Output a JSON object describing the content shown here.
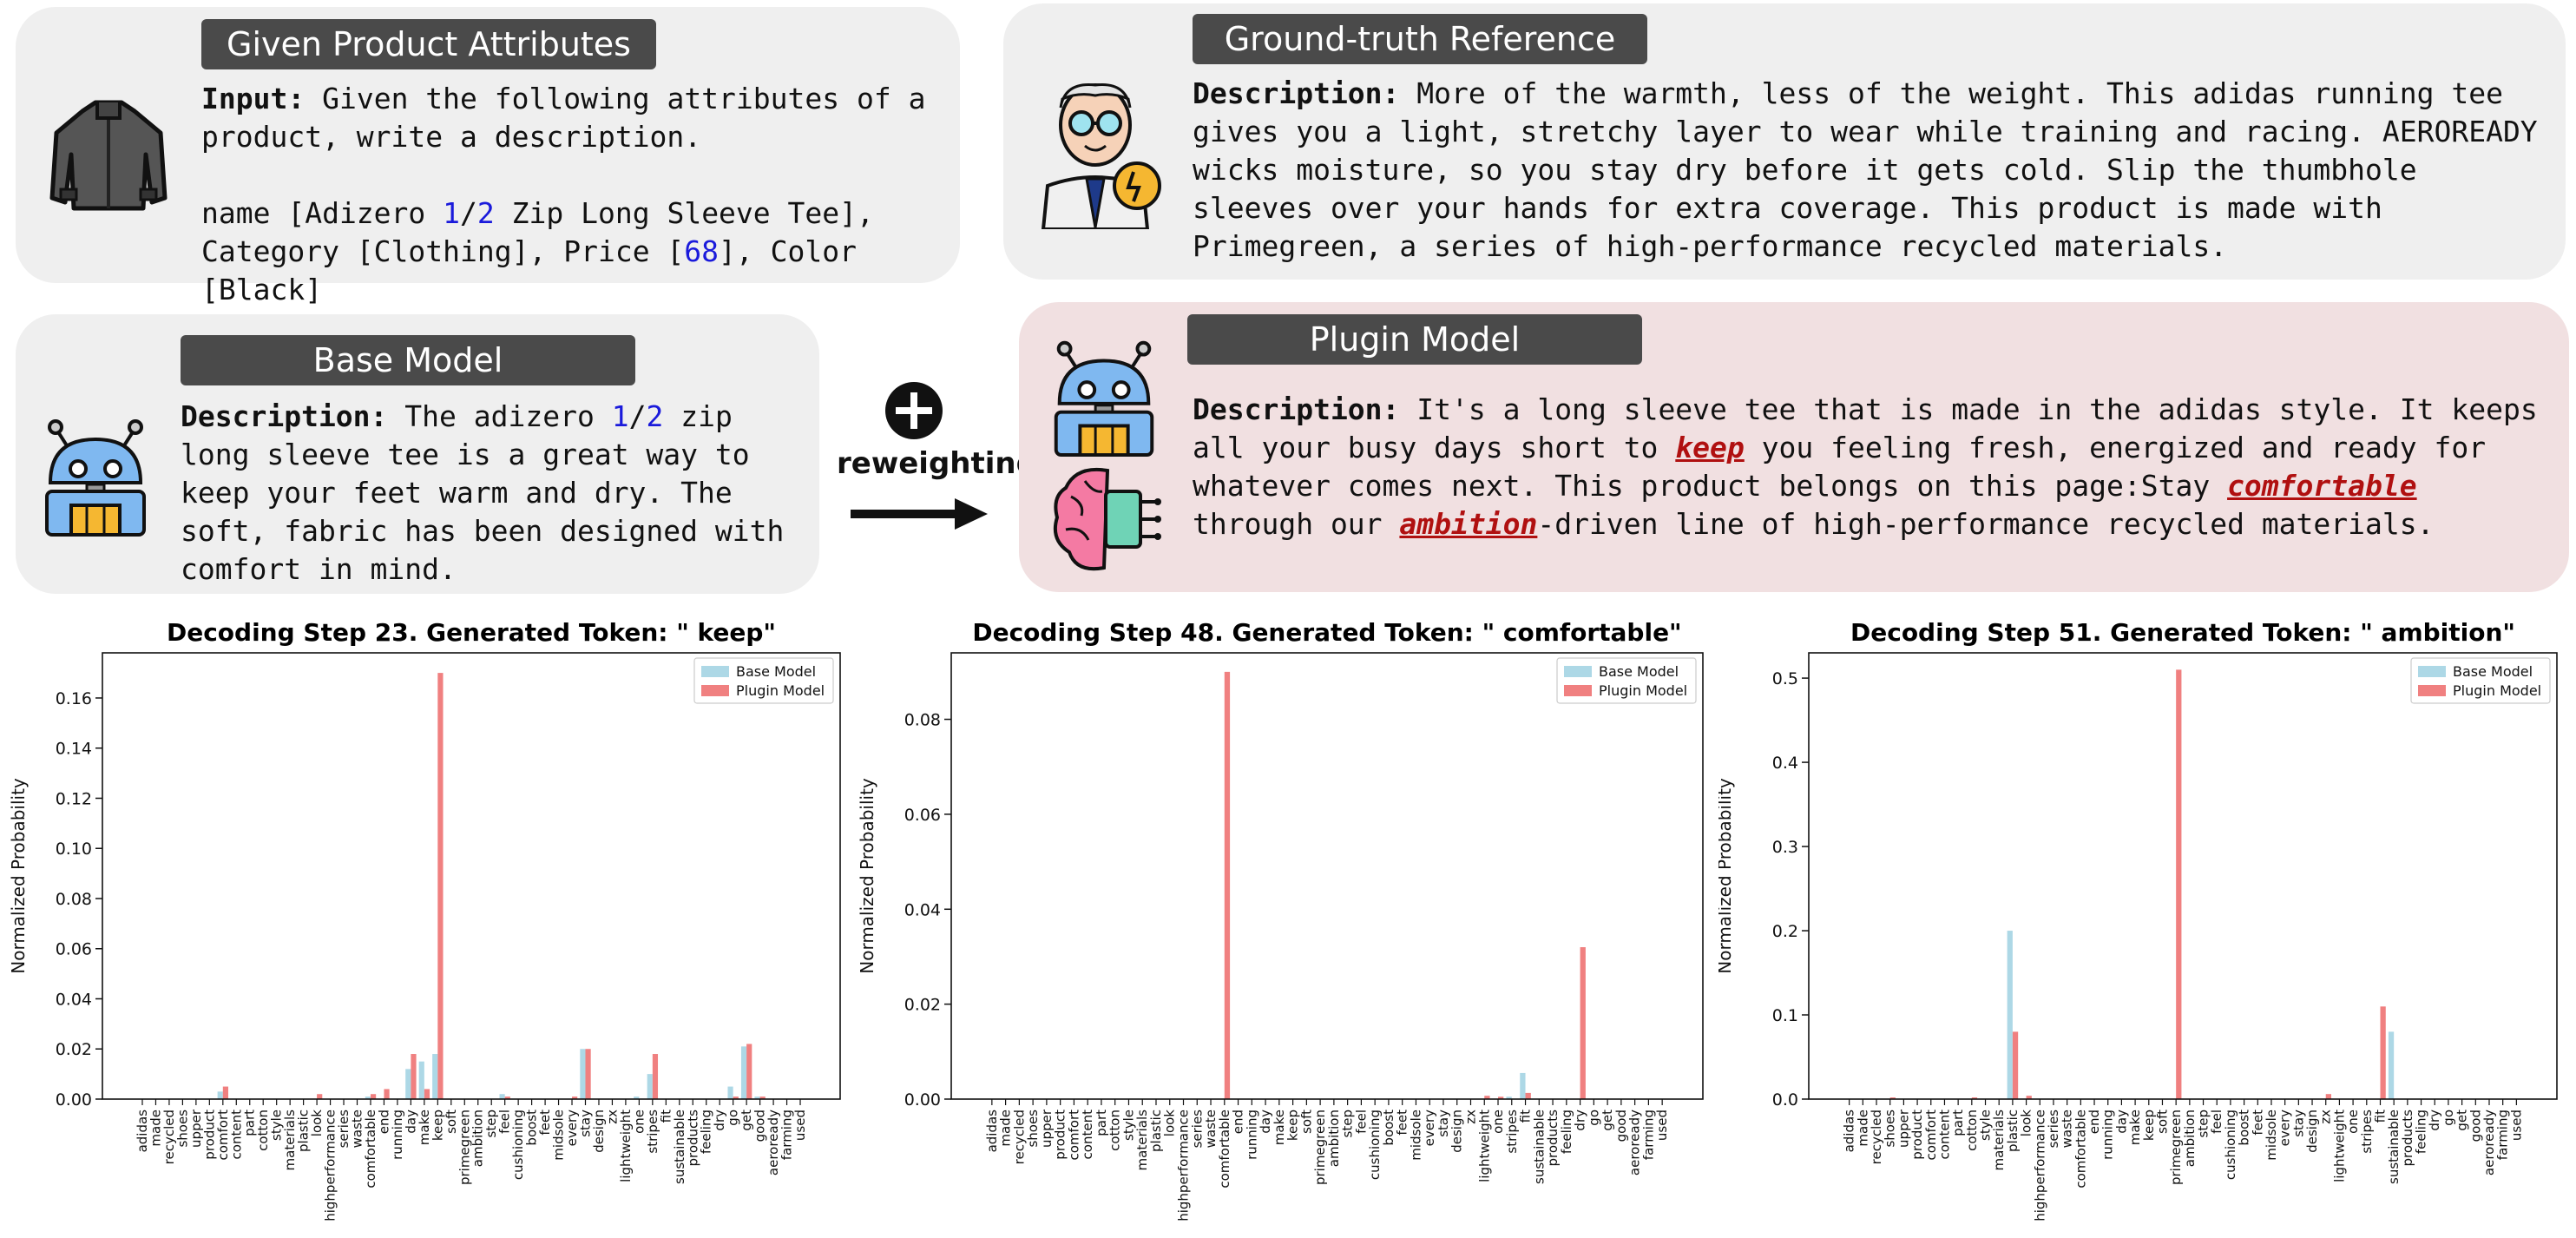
{
  "panels": {
    "given": {
      "title": "Given Product Attributes",
      "input_label": "Input:",
      "input_text": "Given the following attributes of a product, write a description.",
      "attr_line1_a": "name [Adizero ",
      "attr_line1_num1": "1",
      "attr_line1_slash": "/",
      "attr_line1_num2": "2",
      "attr_line1_b": " Zip Long Sleeve Tee],",
      "attr_line2_a": "Category [Clothing], Price [",
      "attr_line2_num": "68",
      "attr_line2_b": "], Color [Black]"
    },
    "reference": {
      "title": "Ground-truth Reference",
      "desc_label": "Description:",
      "desc_text": "More of the warmth, less of the weight. This adidas running tee gives you a light, stretchy layer to wear while training and racing. AEROREADY wicks moisture, so you stay dry before it gets cold. Slip the thumbhole sleeves over your hands for extra coverage. This product is made with Primegreen, a series of high-performance recycled materials."
    },
    "base": {
      "title": "Base Model",
      "desc_label": "Description:",
      "desc_a": "The adizero ",
      "desc_num1": "1",
      "desc_slash": "/",
      "desc_num2": "2",
      "desc_b": " zip long sleeve tee is a great way to keep your feet warm and dry. The soft, fabric has been designed with comfort in mind."
    },
    "plugin": {
      "title": "Plugin Model",
      "desc_label": "Description:",
      "desc_a": "It's a long sleeve tee that is made in the adidas style. It keeps all your busy days short to ",
      "hl1": "keep",
      "desc_b": " you feeling fresh, energized and ready for whatever comes next. This product belongs on this page:Stay ",
      "hl2": "comfortable",
      "desc_c": " through our ",
      "hl3": "ambition",
      "desc_d": "-driven line of high-performance recycled materials."
    }
  },
  "arrow_label": "reweighting",
  "icons": {
    "given": "jacket-icon",
    "reference": "scientist-icon",
    "base": "robot-icon",
    "plugin": "robot-icon",
    "plugin2": "brain-chip-icon",
    "plus": "plus-circle-icon"
  },
  "colors": {
    "base_series": "#add8e6",
    "plugin_series": "#f08080",
    "highlight": "#b01010",
    "number": "#1a1adb"
  },
  "chart_data": [
    {
      "type": "bar",
      "title": "Decoding Step 23. Generated Token: \" keep\"",
      "ylabel": "Normalized Probability",
      "ylim": [
        0,
        0.178
      ],
      "yticks": [
        "0.00",
        "0.02",
        "0.04",
        "0.06",
        "0.08",
        "0.10",
        "0.12",
        "0.14",
        "0.16"
      ],
      "legend": "top-right",
      "categories": [
        "adidas",
        "made",
        "recycled",
        "shoes",
        "upper",
        "product",
        "comfort",
        "content",
        "part",
        "cotton",
        "style",
        "materials",
        "plastic",
        "look",
        "highperformance",
        "series",
        "waste",
        "comfortable",
        "end",
        "running",
        "day",
        "make",
        "keep",
        "soft",
        "primegreen",
        "ambition",
        "step",
        "feel",
        "cushioning",
        "boost",
        "feet",
        "midsole",
        "every",
        "stay",
        "design",
        "zx",
        "lightweight",
        "one",
        "stripes",
        "fit",
        "sustainable",
        "products",
        "feeling",
        "dry",
        "go",
        "get",
        "good",
        "aeroready",
        "farming",
        "used"
      ],
      "series": [
        {
          "name": "Base Model",
          "values": [
            0,
            0,
            0,
            0,
            0,
            0,
            0.003,
            0,
            0,
            0,
            0,
            0,
            0,
            0,
            0,
            0,
            0,
            0.001,
            0,
            0,
            0.012,
            0.015,
            0.018,
            0,
            0,
            0,
            0,
            0.002,
            0,
            0,
            0,
            0,
            0,
            0.02,
            0,
            0,
            0,
            0.001,
            0.01,
            0,
            0,
            0,
            0,
            0,
            0.005,
            0.021,
            0.001,
            0,
            0,
            0
          ],
          "color": "#add8e6"
        },
        {
          "name": "Plugin Model",
          "values": [
            0,
            0,
            0,
            0,
            0,
            0,
            0.005,
            0,
            0,
            0,
            0,
            0,
            0,
            0.002,
            0,
            0,
            0,
            0.002,
            0.004,
            0,
            0.018,
            0.004,
            0.17,
            0,
            0,
            0,
            0,
            0.001,
            0,
            0,
            0,
            0,
            0.001,
            0.02,
            0,
            0,
            0,
            0,
            0.018,
            0,
            0,
            0,
            0,
            0,
            0.001,
            0.022,
            0.001,
            0,
            0,
            0
          ],
          "color": "#f08080"
        }
      ]
    },
    {
      "type": "bar",
      "title": "Decoding Step 48. Generated Token: \" comfortable\"",
      "ylabel": "Normalized Probability",
      "ylim": [
        0,
        0.094
      ],
      "yticks": [
        "0.00",
        "0.02",
        "0.04",
        "0.06",
        "0.08"
      ],
      "legend": "top-right",
      "categories": [
        "adidas",
        "made",
        "recycled",
        "shoes",
        "upper",
        "product",
        "comfort",
        "content",
        "part",
        "cotton",
        "style",
        "materials",
        "plastic",
        "look",
        "highperformance",
        "series",
        "waste",
        "comfortable",
        "end",
        "running",
        "day",
        "make",
        "keep",
        "soft",
        "primegreen",
        "ambition",
        "step",
        "feel",
        "cushioning",
        "boost",
        "feet",
        "midsole",
        "every",
        "stay",
        "design",
        "zx",
        "lightweight",
        "one",
        "stripes",
        "fit",
        "sustainable",
        "products",
        "feeling",
        "dry",
        "go",
        "get",
        "good",
        "aeroready",
        "farming",
        "used"
      ],
      "series": [
        {
          "name": "Base Model",
          "values": [
            0,
            0,
            0,
            0,
            0,
            0,
            0,
            0,
            0,
            0,
            0,
            0,
            0,
            0,
            0,
            0,
            0,
            0,
            0,
            0,
            0,
            0,
            0,
            0,
            0,
            0,
            0,
            0,
            0,
            0,
            0,
            0,
            0,
            0,
            0,
            0,
            0,
            0,
            0.0005,
            0.0055,
            0,
            0,
            0,
            0,
            0,
            0,
            0,
            0,
            0,
            0
          ],
          "color": "#add8e6"
        },
        {
          "name": "Plugin Model",
          "values": [
            0,
            0,
            0,
            0,
            0,
            0,
            0,
            0,
            0,
            0,
            0,
            0,
            0,
            0,
            0,
            0,
            0,
            0.09,
            0,
            0,
            0,
            0,
            0,
            0,
            0,
            0,
            0,
            0,
            0,
            0,
            0,
            0,
            0,
            0,
            0,
            0,
            0.0007,
            0.0005,
            0,
            0.0013,
            0,
            0,
            0,
            0.032,
            0,
            0,
            0,
            0,
            0,
            0
          ],
          "color": "#f08080"
        }
      ]
    },
    {
      "type": "bar",
      "title": "Decoding Step 51. Generated Token: \" ambition\"",
      "ylabel": "Normalized Probability",
      "ylim": [
        0,
        0.53
      ],
      "yticks": [
        "0.0",
        "0.1",
        "0.2",
        "0.3",
        "0.4",
        "0.5"
      ],
      "legend": "top-right",
      "categories": [
        "adidas",
        "made",
        "recycled",
        "shoes",
        "upper",
        "product",
        "comfort",
        "content",
        "part",
        "cotton",
        "style",
        "materials",
        "plastic",
        "look",
        "highperformance",
        "series",
        "waste",
        "comfortable",
        "end",
        "running",
        "day",
        "make",
        "keep",
        "soft",
        "primegreen",
        "ambition",
        "step",
        "feel",
        "cushioning",
        "boost",
        "feet",
        "midsole",
        "every",
        "stay",
        "design",
        "zx",
        "lightweight",
        "one",
        "stripes",
        "fit",
        "sustainable",
        "products",
        "feeling",
        "dry",
        "go",
        "get",
        "good",
        "aeroready",
        "farming",
        "used"
      ],
      "series": [
        {
          "name": "Base Model",
          "values": [
            0,
            0,
            0,
            0,
            0,
            0,
            0,
            0,
            0,
            0,
            0,
            0,
            0.2,
            0,
            0,
            0,
            0,
            0,
            0,
            0,
            0,
            0,
            0,
            0,
            0,
            0,
            0,
            0,
            0,
            0,
            0,
            0,
            0,
            0,
            0,
            0,
            0,
            0,
            0,
            0,
            0.08,
            0,
            0,
            0,
            0,
            0,
            0,
            0,
            0,
            0
          ],
          "color": "#add8e6"
        },
        {
          "name": "Plugin Model",
          "values": [
            0,
            0,
            0,
            0.002,
            0,
            0,
            0,
            0,
            0,
            0.002,
            0,
            0,
            0.08,
            0.004,
            0,
            0,
            0,
            0,
            0,
            0,
            0,
            0,
            0,
            0,
            0.51,
            0,
            0,
            0,
            0,
            0,
            0,
            0,
            0,
            0,
            0,
            0.006,
            0,
            0,
            0,
            0.11,
            0,
            0,
            0,
            0,
            0,
            0,
            0,
            0,
            0,
            0
          ],
          "color": "#f08080"
        }
      ]
    }
  ]
}
